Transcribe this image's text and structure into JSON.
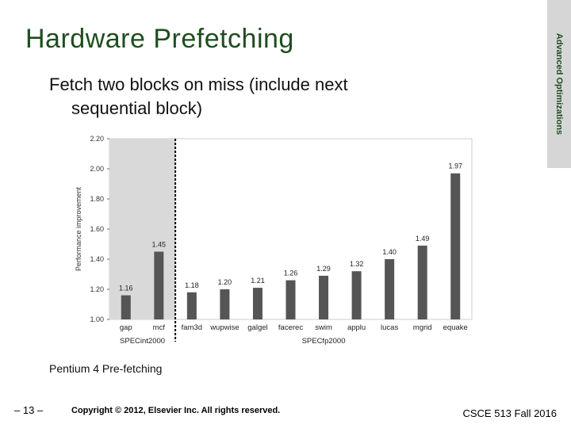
{
  "slide": {
    "title": "Hardware Prefetching",
    "side_tab": "Advanced Optimizations",
    "bullet_line1": "Fetch two blocks on miss (include next",
    "bullet_line2": "sequential block)",
    "caption": "Pentium 4 Pre-fetching",
    "footer_left": "– 13 –",
    "footer_center": "Copyright © 2012, Elsevier Inc. All rights reserved.",
    "footer_right": "CSCE 513 Fall 2016"
  },
  "chart_data": {
    "type": "bar",
    "title": "",
    "xlabel": "",
    "ylabel": "Performance improvement",
    "ylim": [
      1.0,
      2.2
    ],
    "yticks": [
      "1.00",
      "1.20",
      "1.40",
      "1.60",
      "1.80",
      "2.00",
      "2.20"
    ],
    "categories": [
      "gap",
      "mcf",
      "fam3d",
      "wupwise",
      "galgel",
      "facerec",
      "swim",
      "applu",
      "lucas",
      "mgrid",
      "equake"
    ],
    "values": [
      1.16,
      1.45,
      1.18,
      1.2,
      1.21,
      1.26,
      1.29,
      1.32,
      1.4,
      1.49,
      1.97
    ],
    "value_labels": [
      "1.16",
      "1.45",
      "1.18",
      "1.20",
      "1.21",
      "1.26",
      "1.29",
      "1.32",
      "1.40",
      "1.49",
      "1.97"
    ],
    "groups": [
      {
        "label": "SPECint2000",
        "count": 2
      },
      {
        "label": "SPECfp2000",
        "count": 9
      }
    ],
    "colors": {
      "bar": "#555555",
      "int_band": "#d9d9d9"
    }
  }
}
